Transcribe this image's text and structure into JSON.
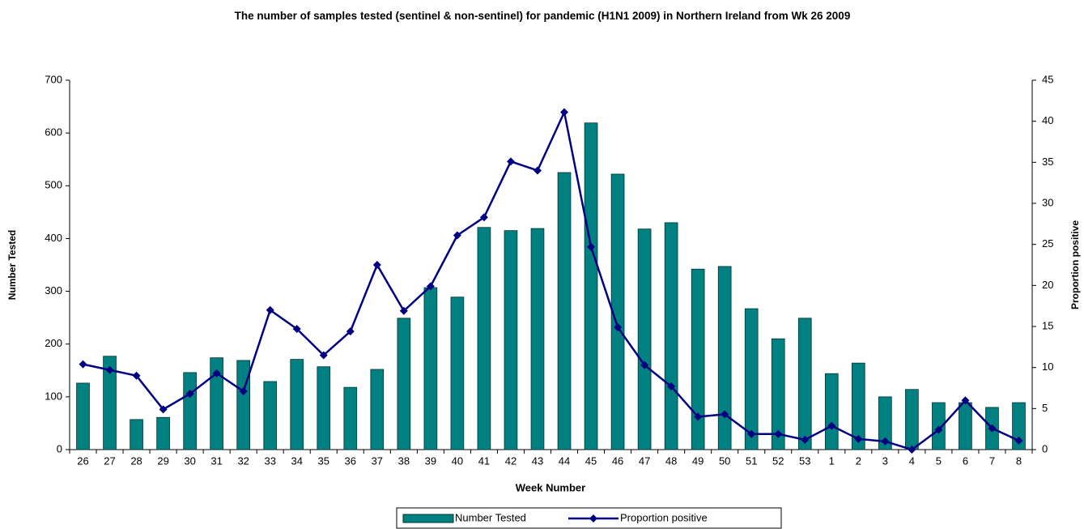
{
  "chart_data": {
    "type": "bar_line",
    "title": "The number of samples tested (sentinel & non-sentinel) for pandemic (H1N1 2009) in Northern Ireland from Wk 26 2009",
    "x_label": "Week Number",
    "y_label": "Number Tested",
    "y2_label": "Proportion positive",
    "categories": [
      "26",
      "27",
      "28",
      "29",
      "30",
      "31",
      "32",
      "33",
      "34",
      "35",
      "36",
      "37",
      "38",
      "39",
      "40",
      "41",
      "42",
      "43",
      "44",
      "45",
      "46",
      "47",
      "48",
      "49",
      "50",
      "51",
      "52",
      "53",
      "1",
      "2",
      "3",
      "4",
      "5",
      "6",
      "7",
      "8"
    ],
    "series": [
      {
        "name": "Number Tested",
        "type": "bar",
        "color": "#008080",
        "values": [
          126,
          177,
          57,
          61,
          146,
          174,
          169,
          129,
          171,
          157,
          118,
          152,
          249,
          307,
          289,
          421,
          415,
          419,
          525,
          619,
          522,
          418,
          430,
          342,
          347,
          267,
          210,
          249,
          144,
          164,
          100,
          114,
          89,
          89,
          80,
          89
        ]
      },
      {
        "name": "Proportion positive",
        "type": "line",
        "axis": "y2",
        "color": "#000080",
        "values": [
          10.4,
          9.7,
          9.0,
          4.9,
          6.8,
          9.3,
          7.1,
          17.0,
          14.7,
          11.5,
          14.4,
          22.5,
          16.9,
          19.9,
          26.1,
          28.3,
          35.1,
          34.0,
          41.1,
          24.7,
          14.9,
          10.3,
          7.7,
          4.0,
          4.3,
          1.9,
          1.9,
          1.2,
          2.9,
          1.3,
          1.0,
          0,
          2.4,
          6.0,
          2.6,
          1.1
        ]
      }
    ],
    "ylim": [
      0,
      700
    ],
    "yticks": [
      0,
      100,
      200,
      300,
      400,
      500,
      600,
      700
    ],
    "y2lim": [
      0,
      45
    ],
    "y2ticks": [
      0,
      5,
      10,
      15,
      20,
      25,
      30,
      35,
      40,
      45
    ],
    "legend": "bottom"
  }
}
